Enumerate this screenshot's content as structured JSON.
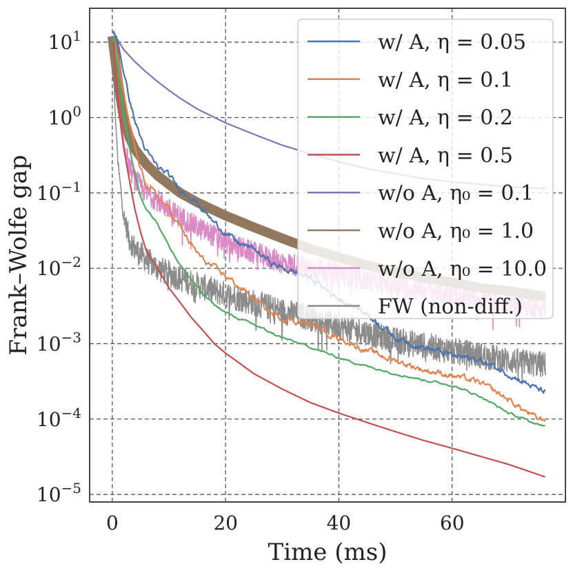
{
  "chart_data": {
    "type": "line",
    "xlabel": "Time (ms)",
    "ylabel": "Frank–Wolfe gap",
    "yscale": "log",
    "xlim": [
      -4,
      80
    ],
    "ylim_exp": [
      -5.1,
      1.45
    ],
    "x_ticks": [
      {
        "value": 0,
        "label": "0"
      },
      {
        "value": 20,
        "label": "20"
      },
      {
        "value": 40,
        "label": "40"
      },
      {
        "value": 60,
        "label": "60"
      }
    ],
    "y_ticks": [
      {
        "exp": 1,
        "label": "10",
        "sup": "1"
      },
      {
        "exp": 0,
        "label": "10",
        "sup": "0"
      },
      {
        "exp": -1,
        "label": "10",
        "sup": "−1"
      },
      {
        "exp": -2,
        "label": "10",
        "sup": "−2"
      },
      {
        "exp": -3,
        "label": "10",
        "sup": "−3"
      },
      {
        "exp": -4,
        "label": "10",
        "sup": "−4"
      },
      {
        "exp": -5,
        "label": "10",
        "sup": "−5"
      }
    ],
    "grid": true,
    "legend_position": "upper-right",
    "series": [
      {
        "name": "w/ A, η = 0.05",
        "legend": "w/ A, η = 0.05",
        "color": "#4c72b0",
        "noise": 0.06,
        "points": [
          [
            0.2,
            14
          ],
          [
            1,
            10
          ],
          [
            2,
            4
          ],
          [
            3,
            1.8
          ],
          [
            4,
            0.9
          ],
          [
            5,
            0.55
          ],
          [
            6,
            0.35
          ],
          [
            7,
            0.28
          ],
          [
            8,
            0.22
          ],
          [
            10,
            0.17
          ],
          [
            12,
            0.11
          ],
          [
            14,
            0.09
          ],
          [
            16,
            0.06
          ],
          [
            18,
            0.04
          ],
          [
            20,
            0.03
          ],
          [
            22,
            0.022
          ],
          [
            25,
            0.018
          ],
          [
            28,
            0.012
          ],
          [
            30,
            0.01
          ],
          [
            32,
            0.009
          ],
          [
            35,
            0.0075
          ],
          [
            38,
            0.005
          ],
          [
            40,
            0.004
          ],
          [
            45,
            0.0025
          ],
          [
            50,
            0.0012
          ],
          [
            55,
            0.0009
          ],
          [
            60,
            0.0007
          ],
          [
            65,
            0.0006
          ],
          [
            70,
            0.0004
          ],
          [
            75,
            0.00025
          ],
          [
            76.5,
            0.00023
          ]
        ]
      },
      {
        "name": "w/ A, η = 0.1",
        "legend": "w/ A, η = 0.1",
        "color": "#dd8452",
        "noise": 0.06,
        "points": [
          [
            0.2,
            12
          ],
          [
            1,
            6
          ],
          [
            2,
            2
          ],
          [
            3,
            0.8
          ],
          [
            4,
            0.4
          ],
          [
            5,
            0.2
          ],
          [
            6,
            0.13
          ],
          [
            8,
            0.09
          ],
          [
            10,
            0.06
          ],
          [
            12,
            0.035
          ],
          [
            14,
            0.02
          ],
          [
            16,
            0.013
          ],
          [
            18,
            0.01
          ],
          [
            20,
            0.008
          ],
          [
            22,
            0.006
          ],
          [
            25,
            0.004
          ],
          [
            28,
            0.0025
          ],
          [
            30,
            0.0022
          ],
          [
            35,
            0.0018
          ],
          [
            40,
            0.0012
          ],
          [
            45,
            0.0008
          ],
          [
            50,
            0.0006
          ],
          [
            55,
            0.00045
          ],
          [
            60,
            0.00038
          ],
          [
            65,
            0.0003
          ],
          [
            70,
            0.00018
          ],
          [
            75,
            0.0001
          ],
          [
            76.5,
            0.0001
          ]
        ]
      },
      {
        "name": "w/ A, η = 0.2",
        "legend": "w/ A, η = 0.2",
        "color": "#55a868",
        "noise": 0.02,
        "points": [
          [
            0.2,
            12
          ],
          [
            1,
            4
          ],
          [
            2,
            1.2
          ],
          [
            3,
            0.4
          ],
          [
            4,
            0.18
          ],
          [
            5,
            0.09
          ],
          [
            6,
            0.06
          ],
          [
            8,
            0.04
          ],
          [
            10,
            0.02
          ],
          [
            12,
            0.011
          ],
          [
            14,
            0.007
          ],
          [
            16,
            0.0045
          ],
          [
            18,
            0.0033
          ],
          [
            20,
            0.0026
          ],
          [
            22,
            0.0022
          ],
          [
            25,
            0.0018
          ],
          [
            28,
            0.0014
          ],
          [
            30,
            0.0012
          ],
          [
            35,
            0.0009
          ],
          [
            40,
            0.00065
          ],
          [
            45,
            0.0005
          ],
          [
            50,
            0.0004
          ],
          [
            55,
            0.00033
          ],
          [
            60,
            0.00028
          ],
          [
            65,
            0.0002
          ],
          [
            70,
            0.00012
          ],
          [
            75,
            8.5e-05
          ],
          [
            76.5,
            8.2e-05
          ]
        ]
      },
      {
        "name": "w/ A, η = 0.5",
        "legend": "w/ A, η = 0.5",
        "color": "#c44e52",
        "noise": 0.0,
        "points": [
          [
            0.2,
            10
          ],
          [
            1,
            1.5
          ],
          [
            2,
            0.4
          ],
          [
            3,
            0.15
          ],
          [
            4,
            0.06
          ],
          [
            5,
            0.03
          ],
          [
            6,
            0.017
          ],
          [
            8,
            0.01
          ],
          [
            10,
            0.0055
          ],
          [
            12,
            0.0035
          ],
          [
            14,
            0.0022
          ],
          [
            16,
            0.0015
          ],
          [
            18,
            0.001
          ],
          [
            20,
            0.00075
          ],
          [
            25,
            0.0004
          ],
          [
            30,
            0.00025
          ],
          [
            35,
            0.000165
          ],
          [
            40,
            0.00012
          ],
          [
            45,
            9e-05
          ],
          [
            50,
            6.8e-05
          ],
          [
            55,
            5.2e-05
          ],
          [
            60,
            4.1e-05
          ],
          [
            65,
            3.2e-05
          ],
          [
            70,
            2.5e-05
          ],
          [
            76.5,
            1.7e-05
          ]
        ]
      },
      {
        "name": "w/o A, η0 = 0.1",
        "legend": "w/o A, η₀ = 0.1",
        "color": "#8172b3",
        "noise": 0.0,
        "points": [
          [
            0,
            14
          ],
          [
            2,
            8
          ],
          [
            4,
            5.5
          ],
          [
            6,
            4
          ],
          [
            8,
            3
          ],
          [
            10,
            2.3
          ],
          [
            12,
            1.8
          ],
          [
            15,
            1.3
          ],
          [
            20,
            0.85
          ],
          [
            25,
            0.6
          ],
          [
            30,
            0.43
          ],
          [
            35,
            0.33
          ],
          [
            40,
            0.26
          ],
          [
            45,
            0.21
          ],
          [
            50,
            0.18
          ],
          [
            55,
            0.155
          ],
          [
            60,
            0.14
          ],
          [
            65,
            0.13
          ],
          [
            70,
            0.12
          ],
          [
            76.5,
            0.115
          ]
        ]
      },
      {
        "name": "w/o A, η0 = 1.0",
        "legend": "w/o A, η₀ = 1.0",
        "color": "#937860",
        "noise": 0.0,
        "band": 0.25,
        "points": [
          [
            0,
            12
          ],
          [
            1,
            3
          ],
          [
            2,
            1
          ],
          [
            3,
            0.55
          ],
          [
            4,
            0.38
          ],
          [
            5,
            0.3
          ],
          [
            6,
            0.24
          ],
          [
            8,
            0.17
          ],
          [
            10,
            0.13
          ],
          [
            12,
            0.1
          ],
          [
            15,
            0.075
          ],
          [
            20,
            0.05
          ],
          [
            25,
            0.035
          ],
          [
            30,
            0.025
          ],
          [
            35,
            0.018
          ],
          [
            40,
            0.014
          ],
          [
            45,
            0.011
          ],
          [
            50,
            0.009
          ],
          [
            55,
            0.0075
          ],
          [
            60,
            0.0065
          ],
          [
            65,
            0.0055
          ],
          [
            70,
            0.005
          ],
          [
            76.5,
            0.0042
          ]
        ]
      },
      {
        "name": "w/o A, η0 = 10.0",
        "legend": "w/o A, η₀ = 10.0",
        "color": "#da8bc3",
        "noise": 0.3,
        "points": [
          [
            0,
            12
          ],
          [
            1,
            1.5
          ],
          [
            2,
            0.5
          ],
          [
            3,
            0.22
          ],
          [
            4,
            0.15
          ],
          [
            6,
            0.1
          ],
          [
            8,
            0.08
          ],
          [
            10,
            0.06
          ],
          [
            12,
            0.048
          ],
          [
            15,
            0.035
          ],
          [
            18,
            0.027
          ],
          [
            20,
            0.022
          ],
          [
            25,
            0.016
          ],
          [
            30,
            0.012
          ],
          [
            35,
            0.01
          ],
          [
            40,
            0.0085
          ],
          [
            45,
            0.007
          ],
          [
            50,
            0.006
          ],
          [
            55,
            0.0052
          ],
          [
            60,
            0.0045
          ],
          [
            65,
            0.004
          ],
          [
            70,
            0.0035
          ],
          [
            76.5,
            0.003
          ]
        ]
      },
      {
        "name": "FW (non-diff.)",
        "legend": "FW (non-diff.)",
        "color": "#8c8c8c",
        "noise": 0.35,
        "points": [
          [
            0,
            12
          ],
          [
            0.5,
            1.2
          ],
          [
            1,
            0.25
          ],
          [
            2,
            0.05
          ],
          [
            3,
            0.025
          ],
          [
            4,
            0.018
          ],
          [
            6,
            0.013
          ],
          [
            8,
            0.01
          ],
          [
            10,
            0.0085
          ],
          [
            15,
            0.006
          ],
          [
            20,
            0.0045
          ],
          [
            25,
            0.0035
          ],
          [
            30,
            0.0027
          ],
          [
            35,
            0.0022
          ],
          [
            40,
            0.0017
          ],
          [
            45,
            0.0014
          ],
          [
            50,
            0.0011
          ],
          [
            55,
            0.00095
          ],
          [
            60,
            0.0008
          ],
          [
            65,
            0.0007
          ],
          [
            70,
            0.0006
          ],
          [
            76.5,
            0.00052
          ]
        ]
      }
    ]
  }
}
